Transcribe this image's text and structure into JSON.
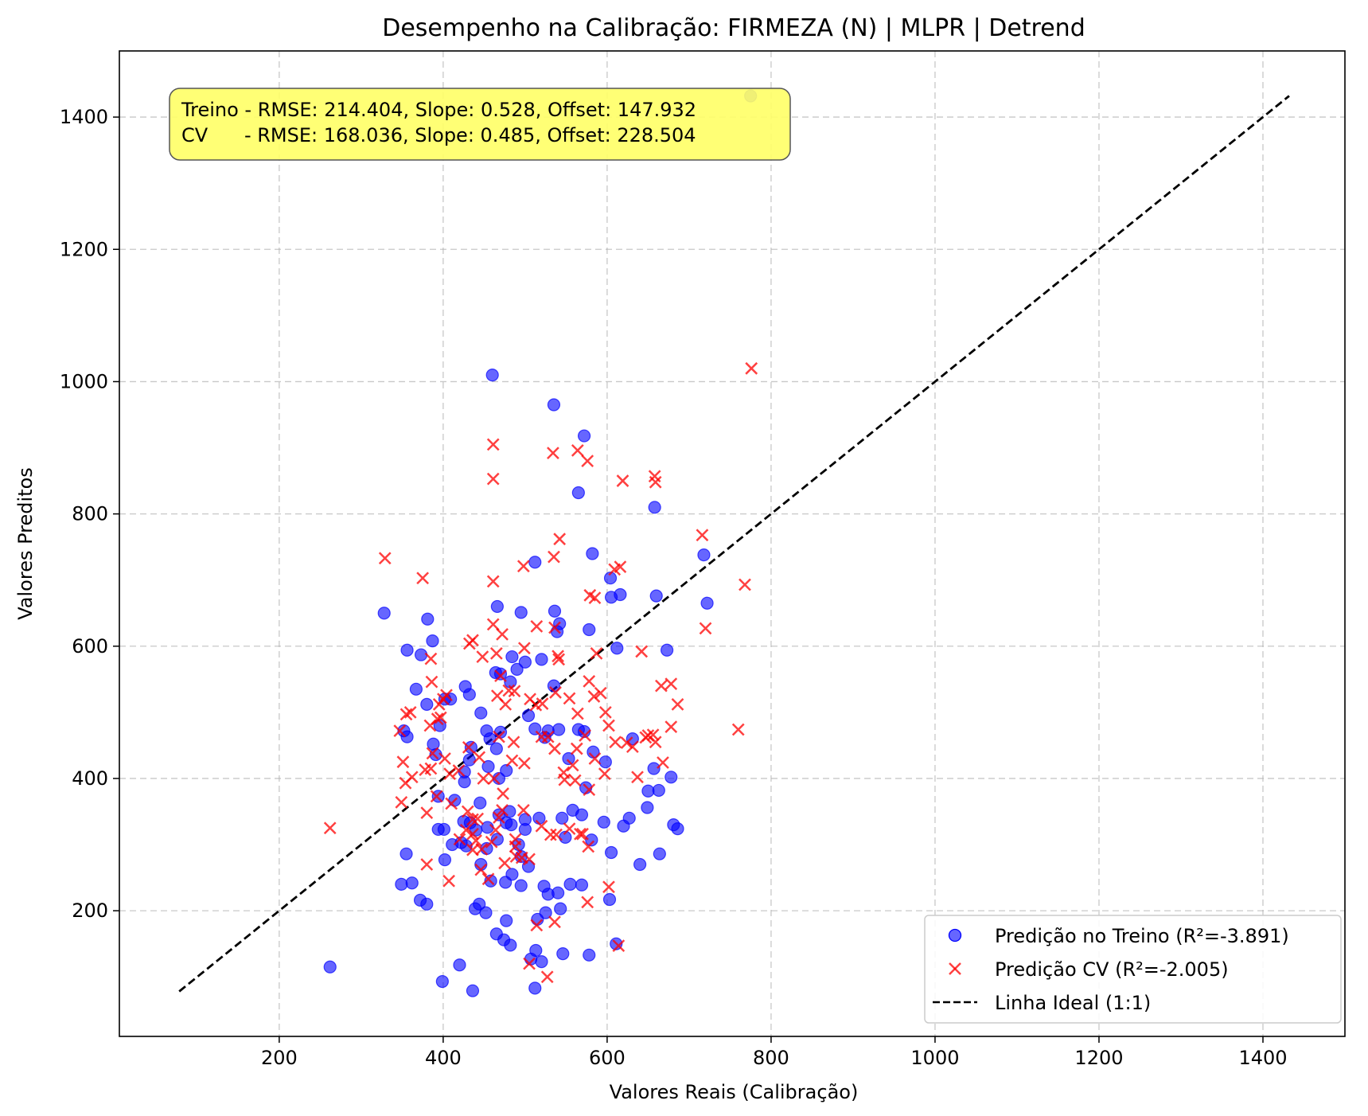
{
  "chart_data": {
    "type": "scatter",
    "title": "Desempenho na Calibração: FIRMEZA (N) | MLPR | Detrend",
    "xlabel": "Valores Reais (Calibração)",
    "ylabel": "Valores Preditos",
    "xlim": [
      5,
      1500
    ],
    "ylim": [
      10,
      1500
    ],
    "xticks": [
      200,
      400,
      600,
      800,
      1000,
      1200,
      1400
    ],
    "yticks": [
      200,
      400,
      600,
      800,
      1000,
      1200,
      1400
    ],
    "grid": true,
    "legend_position": "bottom-right",
    "annotation": {
      "line1": "Treino - RMSE: 214.404, Slope: 0.528, Offset: 147.932",
      "line2": "CV      - RMSE: 168.036, Slope: 0.485, Offset: 228.504",
      "bg_color": "#ffff66"
    },
    "ideal_line": {
      "name": "Linha Ideal (1:1)",
      "x": [
        78,
        1432
      ],
      "y": [
        78,
        1432
      ],
      "color": "#000000"
    },
    "series": [
      {
        "name": "Predição no Treino (R²=-3.891)",
        "marker": "circle",
        "color": "#0000ff",
        "points": [
          [
            775,
            1432
          ],
          [
            460,
            1010
          ],
          [
            535,
            965
          ],
          [
            572,
            918
          ],
          [
            565,
            832
          ],
          [
            658,
            810
          ],
          [
            582,
            740
          ],
          [
            718,
            738
          ],
          [
            512,
            727
          ],
          [
            604,
            703
          ],
          [
            616,
            678
          ],
          [
            660,
            676
          ],
          [
            722,
            665
          ],
          [
            466,
            660
          ],
          [
            605,
            674
          ],
          [
            328,
            650
          ],
          [
            495,
            651
          ],
          [
            536,
            653
          ],
          [
            542,
            634
          ],
          [
            381,
            641
          ],
          [
            539,
            622
          ],
          [
            578,
            625
          ],
          [
            387,
            608
          ],
          [
            356,
            594
          ],
          [
            373,
            587
          ],
          [
            612,
            597
          ],
          [
            673,
            594
          ],
          [
            520,
            580
          ],
          [
            500,
            576
          ],
          [
            484,
            584
          ],
          [
            464,
            560
          ],
          [
            470,
            558
          ],
          [
            490,
            565
          ],
          [
            482,
            546
          ],
          [
            367,
            535
          ],
          [
            427,
            539
          ],
          [
            535,
            540
          ],
          [
            380,
            512
          ],
          [
            402,
            520
          ],
          [
            409,
            520
          ],
          [
            432,
            527
          ],
          [
            446,
            499
          ],
          [
            504,
            495
          ],
          [
            453,
            472
          ],
          [
            512,
            475
          ],
          [
            528,
            472
          ],
          [
            541,
            474
          ],
          [
            565,
            474
          ],
          [
            572,
            471
          ],
          [
            396,
            480
          ],
          [
            352,
            472
          ],
          [
            356,
            463
          ],
          [
            388,
            452
          ],
          [
            391,
            436
          ],
          [
            434,
            447
          ],
          [
            470,
            470
          ],
          [
            465,
            445
          ],
          [
            457,
            460
          ],
          [
            524,
            462
          ],
          [
            432,
            428
          ],
          [
            553,
            430
          ],
          [
            583,
            440
          ],
          [
            598,
            425
          ],
          [
            657,
            415
          ],
          [
            631,
            460
          ],
          [
            468,
            400
          ],
          [
            477,
            412
          ],
          [
            455,
            418
          ],
          [
            426,
            410
          ],
          [
            426,
            395
          ],
          [
            574,
            386
          ],
          [
            650,
            381
          ],
          [
            663,
            382
          ],
          [
            678,
            402
          ],
          [
            394,
            373
          ],
          [
            414,
            367
          ],
          [
            445,
            363
          ],
          [
            481,
            350
          ],
          [
            500,
            338
          ],
          [
            500,
            323
          ],
          [
            517,
            340
          ],
          [
            545,
            340
          ],
          [
            558,
            352
          ],
          [
            569,
            345
          ],
          [
            596,
            334
          ],
          [
            620,
            328
          ],
          [
            627,
            340
          ],
          [
            649,
            356
          ],
          [
            681,
            330
          ],
          [
            686,
            324
          ],
          [
            394,
            323
          ],
          [
            401,
            323
          ],
          [
            425,
            335
          ],
          [
            433,
            333
          ],
          [
            440,
            322
          ],
          [
            454,
            326
          ],
          [
            483,
            330
          ],
          [
            468,
            345
          ],
          [
            411,
            300
          ],
          [
            422,
            303
          ],
          [
            453,
            294
          ],
          [
            477,
            333
          ],
          [
            466,
            308
          ],
          [
            428,
            298
          ],
          [
            492,
            300
          ],
          [
            581,
            307
          ],
          [
            605,
            288
          ],
          [
            640,
            270
          ],
          [
            664,
            286
          ],
          [
            355,
            286
          ],
          [
            402,
            277
          ],
          [
            446,
            270
          ],
          [
            495,
            282
          ],
          [
            504,
            267
          ],
          [
            495,
            238
          ],
          [
            523,
            237
          ],
          [
            549,
            311
          ],
          [
            458,
            245
          ],
          [
            476,
            243
          ],
          [
            484,
            255
          ],
          [
            528,
            225
          ],
          [
            540,
            227
          ],
          [
            555,
            240
          ],
          [
            569,
            239
          ],
          [
            349,
            240
          ],
          [
            362,
            242
          ],
          [
            372,
            216
          ],
          [
            380,
            210
          ],
          [
            444,
            210
          ],
          [
            439,
            203
          ],
          [
            525,
            197
          ],
          [
            543,
            203
          ],
          [
            515,
            187
          ],
          [
            465,
            165
          ],
          [
            477,
            185
          ],
          [
            452,
            197
          ],
          [
            474,
            156
          ],
          [
            482,
            148
          ],
          [
            513,
            140
          ],
          [
            507,
            127
          ],
          [
            520,
            123
          ],
          [
            546,
            135
          ],
          [
            578,
            133
          ],
          [
            611,
            150
          ],
          [
            262,
            115
          ],
          [
            420,
            118
          ],
          [
            399,
            93
          ],
          [
            436,
            79
          ],
          [
            512,
            83
          ],
          [
            603,
            217
          ]
        ]
      },
      {
        "name": "Predição CV (R²=-2.005)",
        "marker": "x",
        "color": "#ff0000",
        "points": [
          [
            776,
            1020
          ],
          [
            461,
            905
          ],
          [
            534,
            892
          ],
          [
            564,
            896
          ],
          [
            576,
            880
          ],
          [
            461,
            853
          ],
          [
            619,
            850
          ],
          [
            658,
            857
          ],
          [
            659,
            848
          ],
          [
            542,
            762
          ],
          [
            716,
            768
          ],
          [
            329,
            733
          ],
          [
            375,
            703
          ],
          [
            461,
            698
          ],
          [
            768,
            693
          ],
          [
            498,
            721
          ],
          [
            535,
            735
          ],
          [
            616,
            720
          ],
          [
            609,
            716
          ],
          [
            579,
            677
          ],
          [
            585,
            673
          ],
          [
            514,
            630
          ],
          [
            536,
            628
          ],
          [
            461,
            633
          ],
          [
            720,
            627
          ],
          [
            472,
            618
          ],
          [
            499,
            597
          ],
          [
            587,
            589
          ],
          [
            642,
            592
          ],
          [
            385,
            581
          ],
          [
            432,
            604
          ],
          [
            436,
            609
          ],
          [
            448,
            584
          ],
          [
            465,
            589
          ],
          [
            540,
            585
          ],
          [
            541,
            580
          ],
          [
            470,
            555
          ],
          [
            480,
            533
          ],
          [
            400,
            520
          ],
          [
            395,
            512
          ],
          [
            386,
            546
          ],
          [
            360,
            500
          ],
          [
            355,
            497
          ],
          [
            347,
            472
          ],
          [
            468,
            463
          ],
          [
            476,
            512
          ],
          [
            466,
            525
          ],
          [
            487,
            532
          ],
          [
            506,
            520
          ],
          [
            513,
            511
          ],
          [
            521,
            513
          ],
          [
            537,
            530
          ],
          [
            554,
            521
          ],
          [
            564,
            498
          ],
          [
            578,
            547
          ],
          [
            584,
            524
          ],
          [
            592,
            529
          ],
          [
            598,
            500
          ],
          [
            602,
            480
          ],
          [
            610,
            455
          ],
          [
            631,
            448
          ],
          [
            647,
            462
          ],
          [
            650,
            465
          ],
          [
            656,
            466
          ],
          [
            659,
            455
          ],
          [
            666,
            540
          ],
          [
            678,
            543
          ],
          [
            686,
            512
          ],
          [
            678,
            478
          ],
          [
            668,
            424
          ],
          [
            760,
            474
          ],
          [
            384,
            480
          ],
          [
            393,
            490
          ],
          [
            397,
            492
          ],
          [
            404,
            526
          ],
          [
            378,
            413
          ],
          [
            351,
            425
          ],
          [
            362,
            402
          ],
          [
            354,
            393
          ],
          [
            385,
            415
          ],
          [
            387,
            438
          ],
          [
            402,
            430
          ],
          [
            408,
            407
          ],
          [
            419,
            412
          ],
          [
            431,
            447
          ],
          [
            444,
            432
          ],
          [
            449,
            400
          ],
          [
            462,
            400
          ],
          [
            484,
            427
          ],
          [
            486,
            455
          ],
          [
            499,
            423
          ],
          [
            520,
            463
          ],
          [
            528,
            463
          ],
          [
            536,
            445
          ],
          [
            547,
            409
          ],
          [
            548,
            398
          ],
          [
            561,
            397
          ],
          [
            558,
            420
          ],
          [
            563,
            445
          ],
          [
            573,
            465
          ],
          [
            585,
            430
          ],
          [
            597,
            407
          ],
          [
            624,
            454
          ],
          [
            637,
            402
          ],
          [
            349,
            364
          ],
          [
            380,
            348
          ],
          [
            392,
            373
          ],
          [
            410,
            362
          ],
          [
            430,
            350
          ],
          [
            436,
            338
          ],
          [
            442,
            339
          ],
          [
            472,
            352
          ],
          [
            473,
            377
          ],
          [
            468,
            341
          ],
          [
            498,
            352
          ],
          [
            520,
            328
          ],
          [
            531,
            315
          ],
          [
            538,
            315
          ],
          [
            554,
            324
          ],
          [
            567,
            316
          ],
          [
            577,
            297
          ],
          [
            436,
            316
          ],
          [
            440,
            306
          ],
          [
            447,
            293
          ],
          [
            459,
            304
          ],
          [
            464,
            322
          ],
          [
            488,
            308
          ],
          [
            489,
            282
          ],
          [
            496,
            280
          ],
          [
            505,
            278
          ],
          [
            420,
            308
          ],
          [
            428,
            322
          ],
          [
            436,
            292
          ],
          [
            380,
            270
          ],
          [
            407,
            245
          ],
          [
            446,
            262
          ],
          [
            455,
            248
          ],
          [
            475,
            272
          ],
          [
            488,
            297
          ],
          [
            578,
            383
          ],
          [
            570,
            316
          ],
          [
            262,
            325
          ],
          [
            576,
            213
          ],
          [
            602,
            236
          ],
          [
            614,
            147
          ],
          [
            505,
            120
          ],
          [
            514,
            178
          ],
          [
            527,
            100
          ],
          [
            536,
            183
          ]
        ]
      }
    ]
  }
}
